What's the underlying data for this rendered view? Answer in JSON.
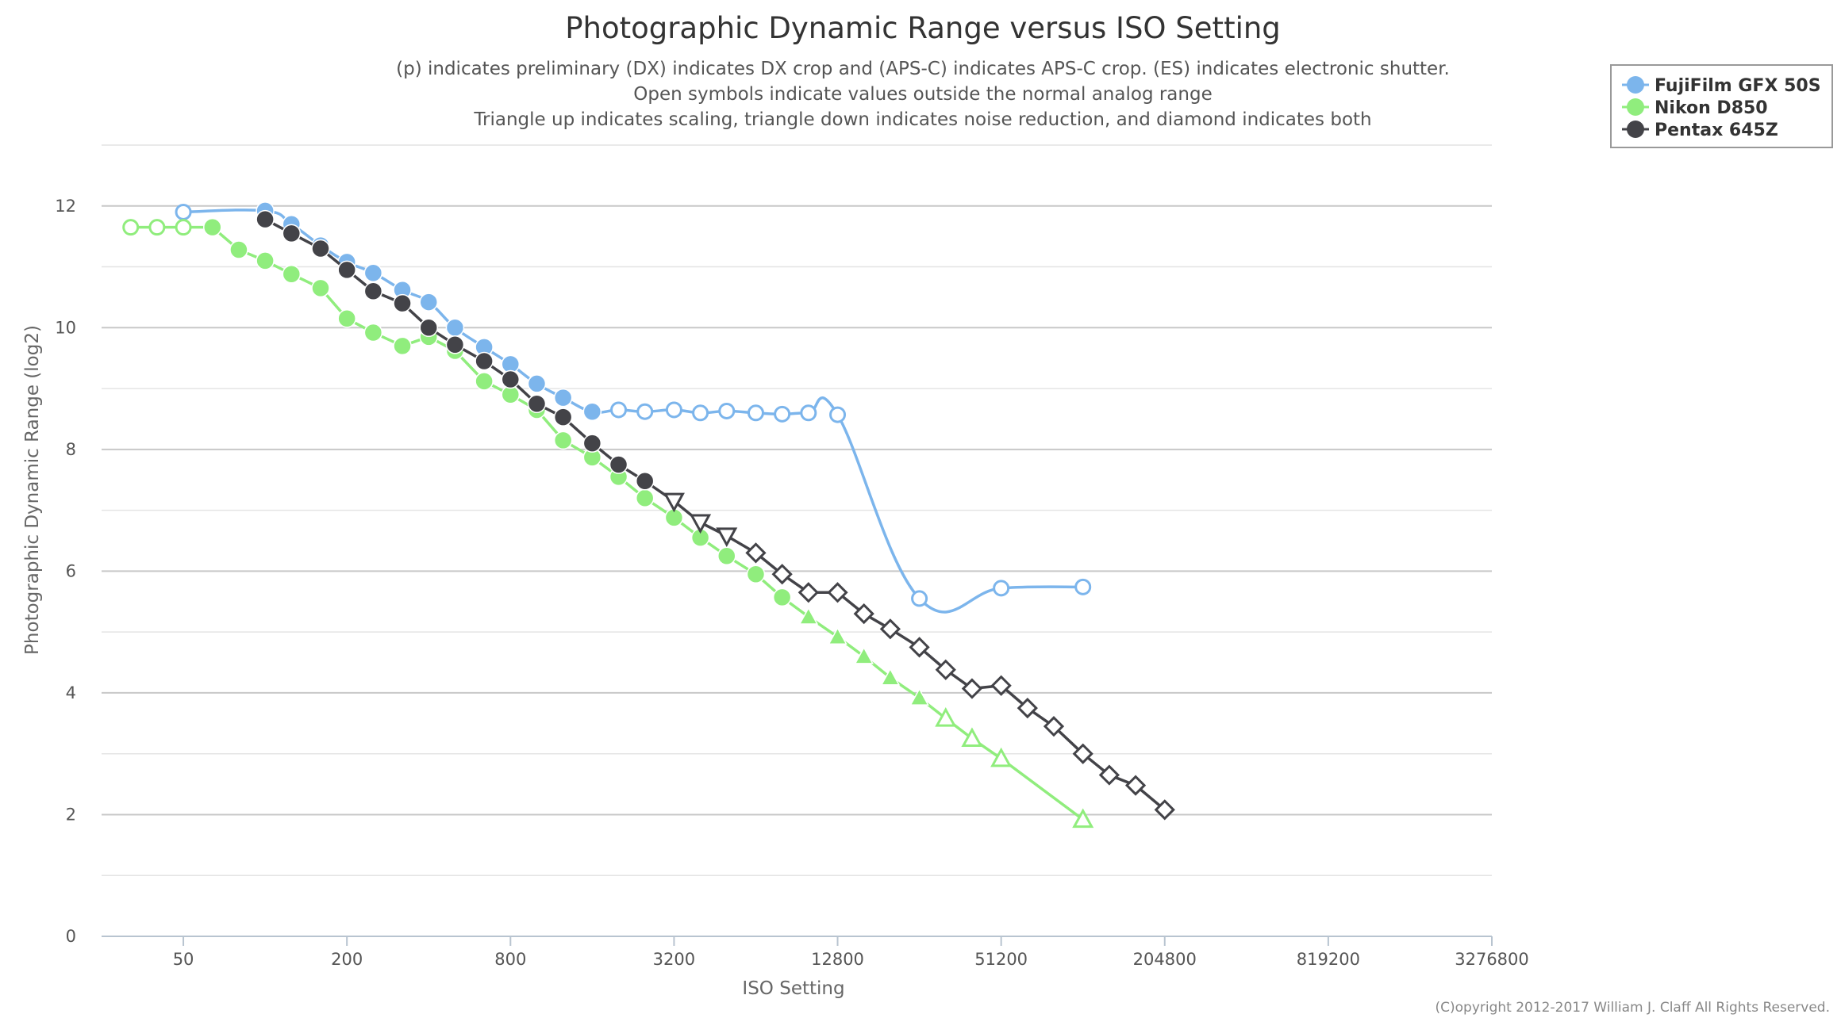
{
  "chart_data": {
    "type": "line",
    "title": "Photographic Dynamic Range versus ISO Setting",
    "subtitle_lines": [
      "(p) indicates preliminary (DX) indicates DX crop and (APS-C) indicates APS-C crop. (ES) indicates electronic shutter.",
      "Open symbols indicate values outside the normal analog range",
      "Triangle up indicates scaling, triangle down indicates noise reduction, and diamond indicates both"
    ],
    "xlabel": "ISO Setting",
    "ylabel": "Photographic Dynamic Range (log2)",
    "x_scale": "log2",
    "xlim": [
      25,
      3276800
    ],
    "ylim": [
      0,
      13
    ],
    "x_ticks": [
      50,
      200,
      800,
      3200,
      12800,
      51200,
      204800,
      819200,
      3276800
    ],
    "x_tick_labels": [
      "50",
      "200",
      "800",
      "3200",
      "12800",
      "51200",
      "204800",
      "819200",
      "3276800"
    ],
    "y_ticks": [
      0,
      2,
      4,
      6,
      8,
      10,
      12
    ],
    "y_tick_labels": [
      "0",
      "2",
      "4",
      "6",
      "8",
      "10",
      "12"
    ],
    "grid": true,
    "legend_position": "top-right",
    "credit": "(C)opyright 2012-2017 William J. Claff All Rights Reserved.",
    "series": [
      {
        "name": "FujiFilm GFX 50S",
        "color": "#7cb5ec",
        "smooth": true,
        "points": [
          {
            "x": 50,
            "y": 11.9,
            "marker": "circle-open"
          },
          {
            "x": 100,
            "y": 11.92,
            "marker": "circle"
          },
          {
            "x": 125,
            "y": 11.7,
            "marker": "circle"
          },
          {
            "x": 160,
            "y": 11.35,
            "marker": "circle"
          },
          {
            "x": 200,
            "y": 11.08,
            "marker": "circle"
          },
          {
            "x": 250,
            "y": 10.9,
            "marker": "circle"
          },
          {
            "x": 320,
            "y": 10.62,
            "marker": "circle"
          },
          {
            "x": 400,
            "y": 10.42,
            "marker": "circle"
          },
          {
            "x": 500,
            "y": 10.0,
            "marker": "circle"
          },
          {
            "x": 640,
            "y": 9.68,
            "marker": "circle"
          },
          {
            "x": 800,
            "y": 9.4,
            "marker": "circle"
          },
          {
            "x": 1000,
            "y": 9.08,
            "marker": "circle"
          },
          {
            "x": 1250,
            "y": 8.85,
            "marker": "circle"
          },
          {
            "x": 1600,
            "y": 8.62,
            "marker": "circle"
          },
          {
            "x": 2000,
            "y": 8.65,
            "marker": "circle-open"
          },
          {
            "x": 2500,
            "y": 8.62,
            "marker": "circle-open"
          },
          {
            "x": 3200,
            "y": 8.65,
            "marker": "circle-open"
          },
          {
            "x": 4000,
            "y": 8.6,
            "marker": "circle-open"
          },
          {
            "x": 5000,
            "y": 8.63,
            "marker": "circle-open"
          },
          {
            "x": 6400,
            "y": 8.6,
            "marker": "circle-open"
          },
          {
            "x": 8000,
            "y": 8.58,
            "marker": "circle-open"
          },
          {
            "x": 10000,
            "y": 8.6,
            "marker": "circle-open"
          },
          {
            "x": 12800,
            "y": 8.57,
            "marker": "circle-open"
          },
          {
            "x": 25600,
            "y": 5.55,
            "marker": "circle-open"
          },
          {
            "x": 51200,
            "y": 5.72,
            "marker": "circle-open"
          },
          {
            "x": 102400,
            "y": 5.74,
            "marker": "circle-open"
          }
        ]
      },
      {
        "name": "Nikon D850",
        "color": "#90ed7d",
        "smooth": false,
        "points": [
          {
            "x": 32,
            "y": 11.65,
            "marker": "circle-open"
          },
          {
            "x": 40,
            "y": 11.65,
            "marker": "circle-open"
          },
          {
            "x": 50,
            "y": 11.65,
            "marker": "circle-open"
          },
          {
            "x": 64,
            "y": 11.65,
            "marker": "circle"
          },
          {
            "x": 80,
            "y": 11.28,
            "marker": "circle"
          },
          {
            "x": 100,
            "y": 11.1,
            "marker": "circle"
          },
          {
            "x": 125,
            "y": 10.88,
            "marker": "circle"
          },
          {
            "x": 160,
            "y": 10.65,
            "marker": "circle"
          },
          {
            "x": 200,
            "y": 10.15,
            "marker": "circle"
          },
          {
            "x": 250,
            "y": 9.92,
            "marker": "circle"
          },
          {
            "x": 320,
            "y": 9.7,
            "marker": "circle"
          },
          {
            "x": 400,
            "y": 9.85,
            "marker": "circle"
          },
          {
            "x": 500,
            "y": 9.62,
            "marker": "circle"
          },
          {
            "x": 640,
            "y": 9.12,
            "marker": "circle"
          },
          {
            "x": 800,
            "y": 8.9,
            "marker": "circle"
          },
          {
            "x": 1000,
            "y": 8.65,
            "marker": "circle"
          },
          {
            "x": 1250,
            "y": 8.15,
            "marker": "circle"
          },
          {
            "x": 1600,
            "y": 7.87,
            "marker": "circle"
          },
          {
            "x": 2000,
            "y": 7.55,
            "marker": "circle"
          },
          {
            "x": 2500,
            "y": 7.2,
            "marker": "circle"
          },
          {
            "x": 3200,
            "y": 6.88,
            "marker": "circle"
          },
          {
            "x": 4000,
            "y": 6.55,
            "marker": "circle"
          },
          {
            "x": 5000,
            "y": 6.25,
            "marker": "circle"
          },
          {
            "x": 6400,
            "y": 5.95,
            "marker": "circle"
          },
          {
            "x": 8000,
            "y": 5.57,
            "marker": "circle"
          },
          {
            "x": 10000,
            "y": 5.25,
            "marker": "triangle-up"
          },
          {
            "x": 12800,
            "y": 4.92,
            "marker": "triangle-up"
          },
          {
            "x": 16000,
            "y": 4.6,
            "marker": "triangle-up"
          },
          {
            "x": 20000,
            "y": 4.25,
            "marker": "triangle-up"
          },
          {
            "x": 25600,
            "y": 3.92,
            "marker": "triangle-up"
          },
          {
            "x": 32000,
            "y": 3.58,
            "marker": "triangle-up-open"
          },
          {
            "x": 40000,
            "y": 3.25,
            "marker": "triangle-up-open"
          },
          {
            "x": 51200,
            "y": 2.92,
            "marker": "triangle-up-open"
          },
          {
            "x": 102400,
            "y": 1.92,
            "marker": "triangle-up-open"
          }
        ]
      },
      {
        "name": "Pentax 645Z",
        "color": "#434348",
        "smooth": false,
        "points": [
          {
            "x": 100,
            "y": 11.78,
            "marker": "circle"
          },
          {
            "x": 125,
            "y": 11.55,
            "marker": "circle"
          },
          {
            "x": 160,
            "y": 11.3,
            "marker": "circle"
          },
          {
            "x": 200,
            "y": 10.95,
            "marker": "circle"
          },
          {
            "x": 250,
            "y": 10.6,
            "marker": "circle"
          },
          {
            "x": 320,
            "y": 10.4,
            "marker": "circle"
          },
          {
            "x": 400,
            "y": 10.0,
            "marker": "circle"
          },
          {
            "x": 500,
            "y": 9.72,
            "marker": "circle"
          },
          {
            "x": 640,
            "y": 9.45,
            "marker": "circle"
          },
          {
            "x": 800,
            "y": 9.15,
            "marker": "circle"
          },
          {
            "x": 1000,
            "y": 8.75,
            "marker": "circle"
          },
          {
            "x": 1250,
            "y": 8.53,
            "marker": "circle"
          },
          {
            "x": 1600,
            "y": 8.1,
            "marker": "circle"
          },
          {
            "x": 2000,
            "y": 7.75,
            "marker": "circle"
          },
          {
            "x": 2500,
            "y": 7.48,
            "marker": "circle"
          },
          {
            "x": 3200,
            "y": 7.15,
            "marker": "triangle-down-open"
          },
          {
            "x": 4000,
            "y": 6.8,
            "marker": "triangle-down-open"
          },
          {
            "x": 5000,
            "y": 6.58,
            "marker": "triangle-down-open"
          },
          {
            "x": 6400,
            "y": 6.3,
            "marker": "diamond-open"
          },
          {
            "x": 8000,
            "y": 5.95,
            "marker": "diamond-open"
          },
          {
            "x": 10000,
            "y": 5.65,
            "marker": "diamond-open"
          },
          {
            "x": 12800,
            "y": 5.65,
            "marker": "diamond-open"
          },
          {
            "x": 16000,
            "y": 5.3,
            "marker": "diamond-open"
          },
          {
            "x": 20000,
            "y": 5.05,
            "marker": "diamond-open"
          },
          {
            "x": 25600,
            "y": 4.75,
            "marker": "diamond-open"
          },
          {
            "x": 32000,
            "y": 4.38,
            "marker": "diamond-open"
          },
          {
            "x": 40000,
            "y": 4.07,
            "marker": "diamond-open"
          },
          {
            "x": 51200,
            "y": 4.12,
            "marker": "diamond-open"
          },
          {
            "x": 64000,
            "y": 3.75,
            "marker": "diamond-open"
          },
          {
            "x": 80000,
            "y": 3.45,
            "marker": "diamond-open"
          },
          {
            "x": 102400,
            "y": 3.0,
            "marker": "diamond-open"
          },
          {
            "x": 128000,
            "y": 2.65,
            "marker": "diamond-open"
          },
          {
            "x": 160000,
            "y": 2.48,
            "marker": "diamond-open"
          },
          {
            "x": 204800,
            "y": 2.08,
            "marker": "diamond-open"
          }
        ]
      }
    ]
  }
}
